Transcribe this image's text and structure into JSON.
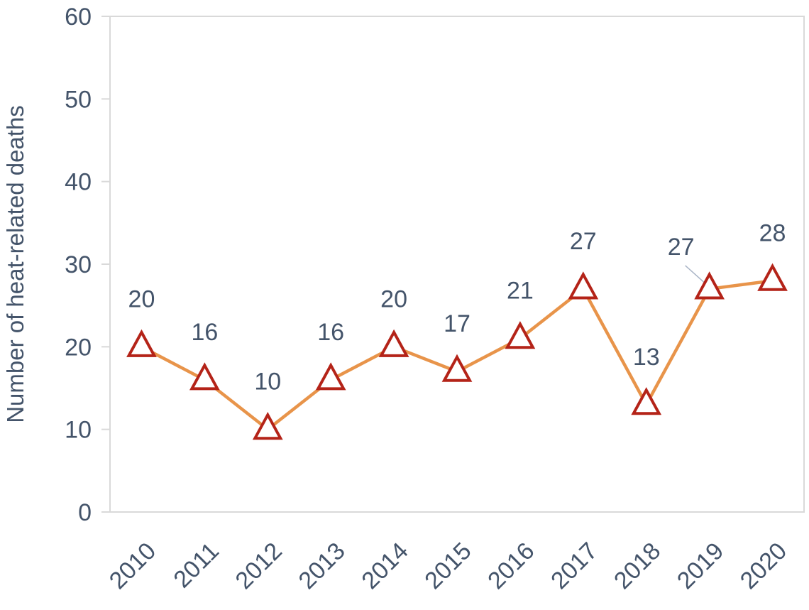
{
  "chart_data": {
    "type": "line",
    "title": "",
    "xlabel": "",
    "ylabel": "Number of heat-related deaths",
    "categories": [
      "2010",
      "2011",
      "2012",
      "2013",
      "2014",
      "2015",
      "2016",
      "2017",
      "2018",
      "2019",
      "2020"
    ],
    "series": [
      {
        "values": [
          20,
          16,
          10,
          16,
          20,
          17,
          21,
          27,
          13,
          27,
          28
        ],
        "line_color": "#e8944a",
        "marker": "triangle",
        "marker_stroke": "#b42318",
        "marker_fill": "#ffffff",
        "data_labels": [
          "20",
          "16",
          "10",
          "16",
          "20",
          "17",
          "21",
          "27",
          "13",
          "27",
          "28"
        ]
      }
    ],
    "ylim": [
      0,
      60
    ],
    "yticks": [
      "0",
      "10",
      "20",
      "30",
      "40",
      "50",
      "60"
    ],
    "grid": false,
    "legend": "none",
    "colors": {
      "axis_text": "#44546a",
      "axis_line": "#d9d9d9"
    }
  }
}
